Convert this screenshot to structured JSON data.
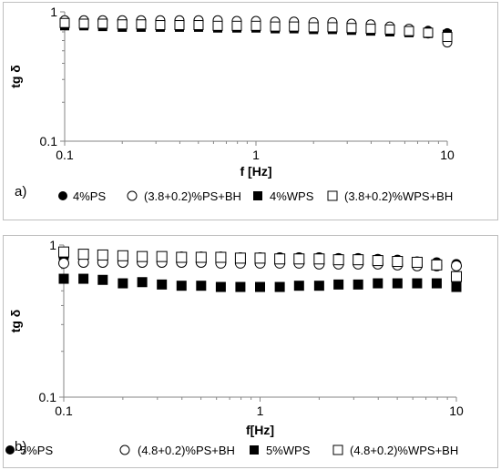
{
  "chart_data": [
    {
      "type": "scatter",
      "panel_label": "a)",
      "title": "",
      "xlabel": "f [Hz]",
      "ylabel": "tg δ",
      "xscale": "log",
      "yscale": "log",
      "xlim": [
        0.1,
        10
      ],
      "ylim": [
        0.1,
        1
      ],
      "x_ticks": [
        "0.1",
        "1",
        "10"
      ],
      "y_ticks": [
        "0.1",
        "1"
      ],
      "grid": false,
      "legend_position": "bottom",
      "x": [
        0.1,
        0.126,
        0.158,
        0.2,
        0.251,
        0.316,
        0.398,
        0.501,
        0.631,
        0.794,
        1,
        1.26,
        1.58,
        2,
        2.51,
        3.16,
        3.98,
        5.01,
        6.31,
        7.94,
        10
      ],
      "series": [
        {
          "name": "4%PS",
          "marker": "filled-circle",
          "values": [
            0.82,
            0.8,
            0.8,
            0.79,
            0.79,
            0.79,
            0.79,
            0.79,
            0.79,
            0.78,
            0.78,
            0.78,
            0.78,
            0.77,
            0.77,
            0.76,
            0.76,
            0.75,
            0.74,
            0.72,
            0.69
          ]
        },
        {
          "name": "(3.8+0.2)%PS+BH",
          "marker": "open-circle",
          "values": [
            0.86,
            0.86,
            0.86,
            0.86,
            0.86,
            0.86,
            0.86,
            0.86,
            0.86,
            0.85,
            0.85,
            0.84,
            0.84,
            0.83,
            0.83,
            0.81,
            0.8,
            0.77,
            0.74,
            0.68,
            0.58
          ]
        },
        {
          "name": "4%WPS",
          "marker": "filled-square",
          "values": [
            0.78,
            0.78,
            0.77,
            0.76,
            0.76,
            0.76,
            0.76,
            0.76,
            0.75,
            0.75,
            0.75,
            0.74,
            0.74,
            0.73,
            0.73,
            0.72,
            0.71,
            0.7,
            0.69,
            0.68,
            0.67
          ]
        },
        {
          "name": "(3.8+0.2)%WPS+BH",
          "marker": "open-square",
          "values": [
            0.82,
            0.81,
            0.81,
            0.8,
            0.8,
            0.79,
            0.79,
            0.79,
            0.78,
            0.78,
            0.78,
            0.77,
            0.77,
            0.76,
            0.76,
            0.75,
            0.74,
            0.73,
            0.71,
            0.69,
            0.64
          ]
        }
      ]
    },
    {
      "type": "scatter",
      "panel_label": "b)",
      "title": "",
      "xlabel": "f[Hz]",
      "ylabel": "tg δ",
      "xscale": "log",
      "yscale": "log",
      "xlim": [
        0.1,
        10
      ],
      "ylim": [
        0.1,
        1
      ],
      "x_ticks": [
        "0.1",
        "1",
        "10"
      ],
      "y_ticks": [
        "0.1",
        "1"
      ],
      "grid": false,
      "legend_position": "bottom",
      "x": [
        0.1,
        0.126,
        0.158,
        0.2,
        0.251,
        0.316,
        0.398,
        0.501,
        0.631,
        0.794,
        1,
        1.26,
        1.58,
        2,
        2.51,
        3.16,
        3.98,
        5.01,
        6.31,
        7.94,
        10
      ],
      "series": [
        {
          "name": "5%PS",
          "marker": "filled-circle",
          "values": [
            0.82,
            0.84,
            0.85,
            0.84,
            0.84,
            0.84,
            0.84,
            0.84,
            0.84,
            0.83,
            0.83,
            0.83,
            0.83,
            0.83,
            0.82,
            0.82,
            0.81,
            0.8,
            0.78,
            0.77,
            0.75
          ]
        },
        {
          "name": "(4.8+0.2)%PS+BH",
          "marker": "open-circle",
          "values": [
            0.76,
            0.77,
            0.77,
            0.77,
            0.77,
            0.77,
            0.77,
            0.77,
            0.76,
            0.76,
            0.76,
            0.76,
            0.76,
            0.75,
            0.75,
            0.75,
            0.75,
            0.74,
            0.73,
            0.73,
            0.73
          ]
        },
        {
          "name": "5%WPS",
          "marker": "filled-square",
          "values": [
            0.6,
            0.6,
            0.59,
            0.56,
            0.57,
            0.55,
            0.54,
            0.54,
            0.53,
            0.53,
            0.53,
            0.53,
            0.54,
            0.54,
            0.55,
            0.55,
            0.56,
            0.56,
            0.56,
            0.56,
            0.53
          ]
        },
        {
          "name": "(4.8+0.2)%WPS+BH",
          "marker": "open-square",
          "values": [
            0.9,
            0.87,
            0.86,
            0.85,
            0.84,
            0.84,
            0.83,
            0.83,
            0.83,
            0.82,
            0.82,
            0.81,
            0.81,
            0.81,
            0.8,
            0.8,
            0.79,
            0.78,
            0.77,
            0.74,
            0.62
          ]
        }
      ]
    }
  ]
}
